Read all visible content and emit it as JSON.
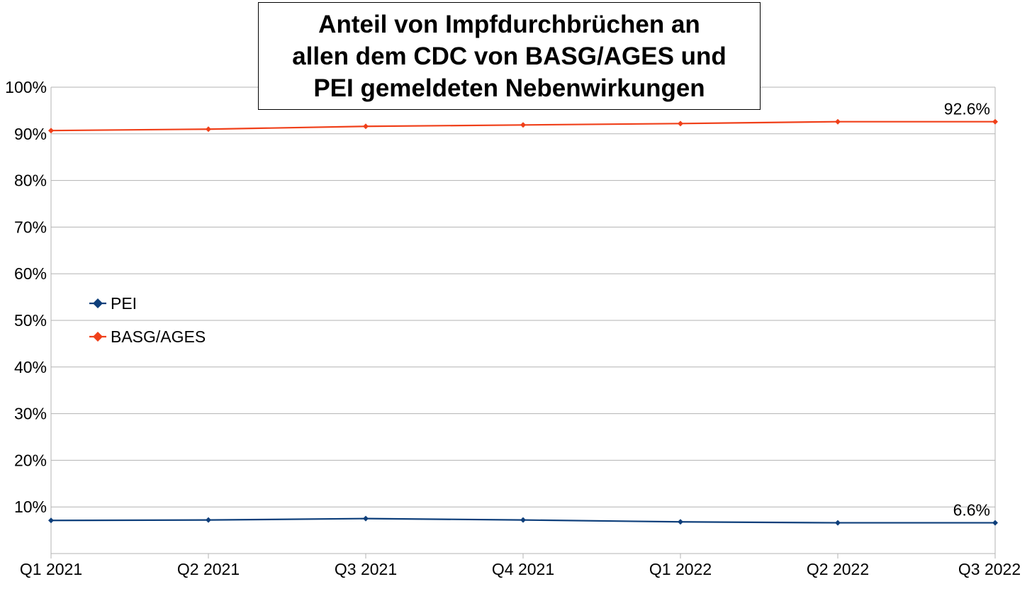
{
  "chart_data": {
    "type": "line",
    "title_lines": [
      "Anteil von Impfdurchbrüchen an",
      "allen dem CDC von BASG/AGES und",
      "PEI gemeldeten Nebenwirkungen"
    ],
    "categories": [
      "Q1 2021",
      "Q2 2021",
      "Q3 2021",
      "Q4 2021",
      "Q1 2022",
      "Q2 2022",
      "Q3 2022"
    ],
    "y_ticks": [
      "10%",
      "20%",
      "30%",
      "40%",
      "50%",
      "60%",
      "70%",
      "80%",
      "90%",
      "100%"
    ],
    "ylim": [
      0,
      100
    ],
    "grid": true,
    "legend_position": "left",
    "series": [
      {
        "name": "PEI",
        "color": "#0e3f7b",
        "values": [
          7.1,
          7.2,
          7.5,
          7.2,
          6.8,
          6.6,
          6.6
        ],
        "end_label": "6.6%"
      },
      {
        "name": "BASG/AGES",
        "color": "#f0401a",
        "values": [
          90.7,
          91.0,
          91.6,
          91.9,
          92.2,
          92.6,
          92.6
        ],
        "end_label": "92.6%"
      }
    ]
  }
}
